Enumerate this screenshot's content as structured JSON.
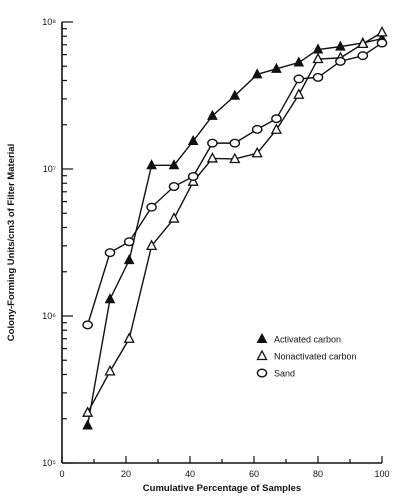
{
  "chart_data": {
    "type": "line",
    "title": "",
    "xlabel": "Cumulative Percentage of Samples",
    "ylabel": "Colony-Forming Units/cm3 of Filter Material",
    "xlim": [
      0,
      100
    ],
    "ylim": [
      100000,
      100000000
    ],
    "y_scale": "log",
    "x_ticks": [
      0,
      20,
      40,
      60,
      80,
      100
    ],
    "y_ticks": [
      {
        "value": 100000,
        "label": "10⁵"
      },
      {
        "value": 1000000,
        "label": "10⁶"
      },
      {
        "value": 10000000,
        "label": "10⁷"
      },
      {
        "value": 100000000,
        "label": "10⁸"
      }
    ],
    "grid": false,
    "legend_position": "lower-right",
    "series": [
      {
        "name": "Activated carbon",
        "marker": "filled-triangle",
        "x": [
          8,
          15,
          21,
          28,
          35,
          41,
          47,
          54,
          61,
          67,
          74,
          80,
          87,
          94,
          100
        ],
        "y": [
          180000,
          1300000,
          2400000,
          10600000,
          10600000,
          15500000,
          23000000,
          31500000,
          44000000,
          48000000,
          53000000,
          65000000,
          68000000,
          72000000,
          77000000
        ]
      },
      {
        "name": "Nonactivated carbon",
        "marker": "open-triangle",
        "x": [
          8,
          15,
          21,
          28,
          35,
          41,
          47,
          54,
          61,
          67,
          74,
          80,
          87,
          94,
          100
        ],
        "y": [
          220000,
          420000,
          700000,
          3000000,
          4600000,
          8200000,
          11800000,
          11700000,
          12800000,
          18500000,
          32000000,
          56000000,
          57000000,
          71000000,
          85000000
        ]
      },
      {
        "name": "Sand",
        "marker": "open-circle",
        "x": [
          8,
          15,
          21,
          28,
          35,
          41,
          47,
          54,
          61,
          67,
          74,
          80,
          87,
          94,
          100
        ],
        "y": [
          870000,
          2700000,
          3200000,
          5500000,
          7600000,
          8900000,
          15000000,
          15000000,
          18600000,
          22000000,
          41000000,
          42000000,
          54000000,
          59000000,
          72000000
        ]
      }
    ]
  }
}
